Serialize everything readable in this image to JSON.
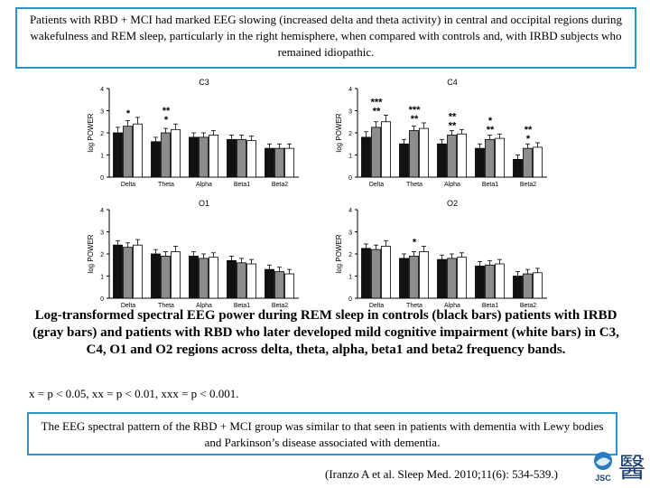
{
  "header": {
    "summary": "Patients with RBD + MCI had marked EEG slowing (increased delta and theta activity) in central and occipital regions during wakefulness and REM sleep, particularly in the right hemisphere, when compared with controls and, with IRBD subjects who remained idiopathic."
  },
  "caption": "Log-transformed spectral EEG power during REM sleep in controls (black bars) patients with IRBD (gray bars) and patients with RBD who later developed mild cognitive impairment (white bars) in C3, C4, O1 and O2 regions across delta, theta, alpha, beta1 and beta2 frequency bands.",
  "significance_note": "x = p < 0.05, xx = p < 0.01, xxx = p < 0.001.",
  "conclusion": "The EEG spectral pattern of the RBD + MCI group was similar to that seen in patients with dementia with Lewy bodies and Parkinson’s disease associated with dementia.",
  "citation": "(Iranzo A et al. Sleep Med. 2010;11(6): 534-539.)",
  "logo": {
    "text": "JSC",
    "glyph": "醫"
  },
  "colors": {
    "frame": "#2a95c9",
    "bar_black": "#111111",
    "bar_gray": "#8c8c8c",
    "bar_white": "#ffffff"
  },
  "chart_data": [
    {
      "type": "bar",
      "title": "C3",
      "ylabel": "log POWER",
      "ylim": [
        0,
        4
      ],
      "yticks": [
        0,
        1,
        2,
        3,
        4
      ],
      "categories": [
        "Delta",
        "Theta",
        "Alpha",
        "Beta1",
        "Beta2"
      ],
      "series": [
        {
          "values": [
            2.0,
            1.6,
            1.8,
            1.7,
            1.3
          ],
          "errors": [
            0.25,
            0.2,
            0.2,
            0.2,
            0.2
          ]
        },
        {
          "values": [
            2.3,
            2.0,
            1.8,
            1.7,
            1.3
          ],
          "errors": [
            0.25,
            0.2,
            0.2,
            0.2,
            0.2
          ]
        },
        {
          "values": [
            2.4,
            2.15,
            1.9,
            1.65,
            1.3
          ],
          "errors": [
            0.3,
            0.25,
            0.2,
            0.2,
            0.2
          ]
        }
      ],
      "annotations": [
        {
          "category": "Delta",
          "rows": [
            "*"
          ]
        },
        {
          "category": "Theta",
          "rows": [
            "**",
            "*"
          ]
        }
      ]
    },
    {
      "type": "bar",
      "title": "C4",
      "ylabel": "log POWER",
      "ylim": [
        0,
        4
      ],
      "yticks": [
        0,
        1,
        2,
        3,
        4
      ],
      "categories": [
        "Delta",
        "Theta",
        "Alpha",
        "Beta1",
        "Beta2"
      ],
      "series": [
        {
          "values": [
            1.8,
            1.5,
            1.5,
            1.3,
            0.8
          ],
          "errors": [
            0.25,
            0.2,
            0.2,
            0.2,
            0.2
          ]
        },
        {
          "values": [
            2.25,
            2.1,
            1.9,
            1.7,
            1.3
          ],
          "errors": [
            0.25,
            0.2,
            0.2,
            0.2,
            0.2
          ]
        },
        {
          "values": [
            2.5,
            2.2,
            1.95,
            1.75,
            1.35
          ],
          "errors": [
            0.3,
            0.25,
            0.2,
            0.2,
            0.2
          ]
        }
      ],
      "annotations": [
        {
          "category": "Delta",
          "rows": [
            "***",
            "**"
          ]
        },
        {
          "category": "Theta",
          "rows": [
            "***",
            "**"
          ]
        },
        {
          "category": "Alpha",
          "rows": [
            "**",
            "**"
          ]
        },
        {
          "category": "Beta1",
          "rows": [
            "*",
            "**"
          ]
        },
        {
          "category": "Beta2",
          "rows": [
            "**",
            "*"
          ]
        }
      ]
    },
    {
      "type": "bar",
      "title": "O1",
      "ylabel": "log POWER",
      "ylim": [
        0,
        4
      ],
      "yticks": [
        0,
        1,
        2,
        3,
        4
      ],
      "categories": [
        "Delta",
        "Theta",
        "Alpha",
        "Beta1",
        "Beta2"
      ],
      "series": [
        {
          "values": [
            2.4,
            2.0,
            1.9,
            1.7,
            1.3
          ],
          "errors": [
            0.2,
            0.2,
            0.2,
            0.2,
            0.2
          ]
        },
        {
          "values": [
            2.3,
            1.9,
            1.8,
            1.6,
            1.2
          ],
          "errors": [
            0.2,
            0.2,
            0.2,
            0.2,
            0.2
          ]
        },
        {
          "values": [
            2.4,
            2.1,
            1.85,
            1.55,
            1.1
          ],
          "errors": [
            0.25,
            0.25,
            0.2,
            0.2,
            0.2
          ]
        }
      ],
      "annotations": []
    },
    {
      "type": "bar",
      "title": "O2",
      "ylabel": "log POWER",
      "ylim": [
        0,
        4
      ],
      "yticks": [
        0,
        1,
        2,
        3,
        4
      ],
      "categories": [
        "Delta",
        "Theta",
        "Alpha",
        "Beta1",
        "Beta2"
      ],
      "series": [
        {
          "values": [
            2.25,
            1.8,
            1.75,
            1.45,
            1.0
          ],
          "errors": [
            0.2,
            0.2,
            0.2,
            0.2,
            0.2
          ]
        },
        {
          "values": [
            2.2,
            1.9,
            1.8,
            1.5,
            1.1
          ],
          "errors": [
            0.2,
            0.2,
            0.2,
            0.2,
            0.2
          ]
        },
        {
          "values": [
            2.35,
            2.1,
            1.85,
            1.55,
            1.15
          ],
          "errors": [
            0.25,
            0.25,
            0.2,
            0.2,
            0.2
          ]
        }
      ],
      "annotations": [
        {
          "category": "Theta",
          "rows": [
            "*"
          ]
        }
      ]
    }
  ]
}
